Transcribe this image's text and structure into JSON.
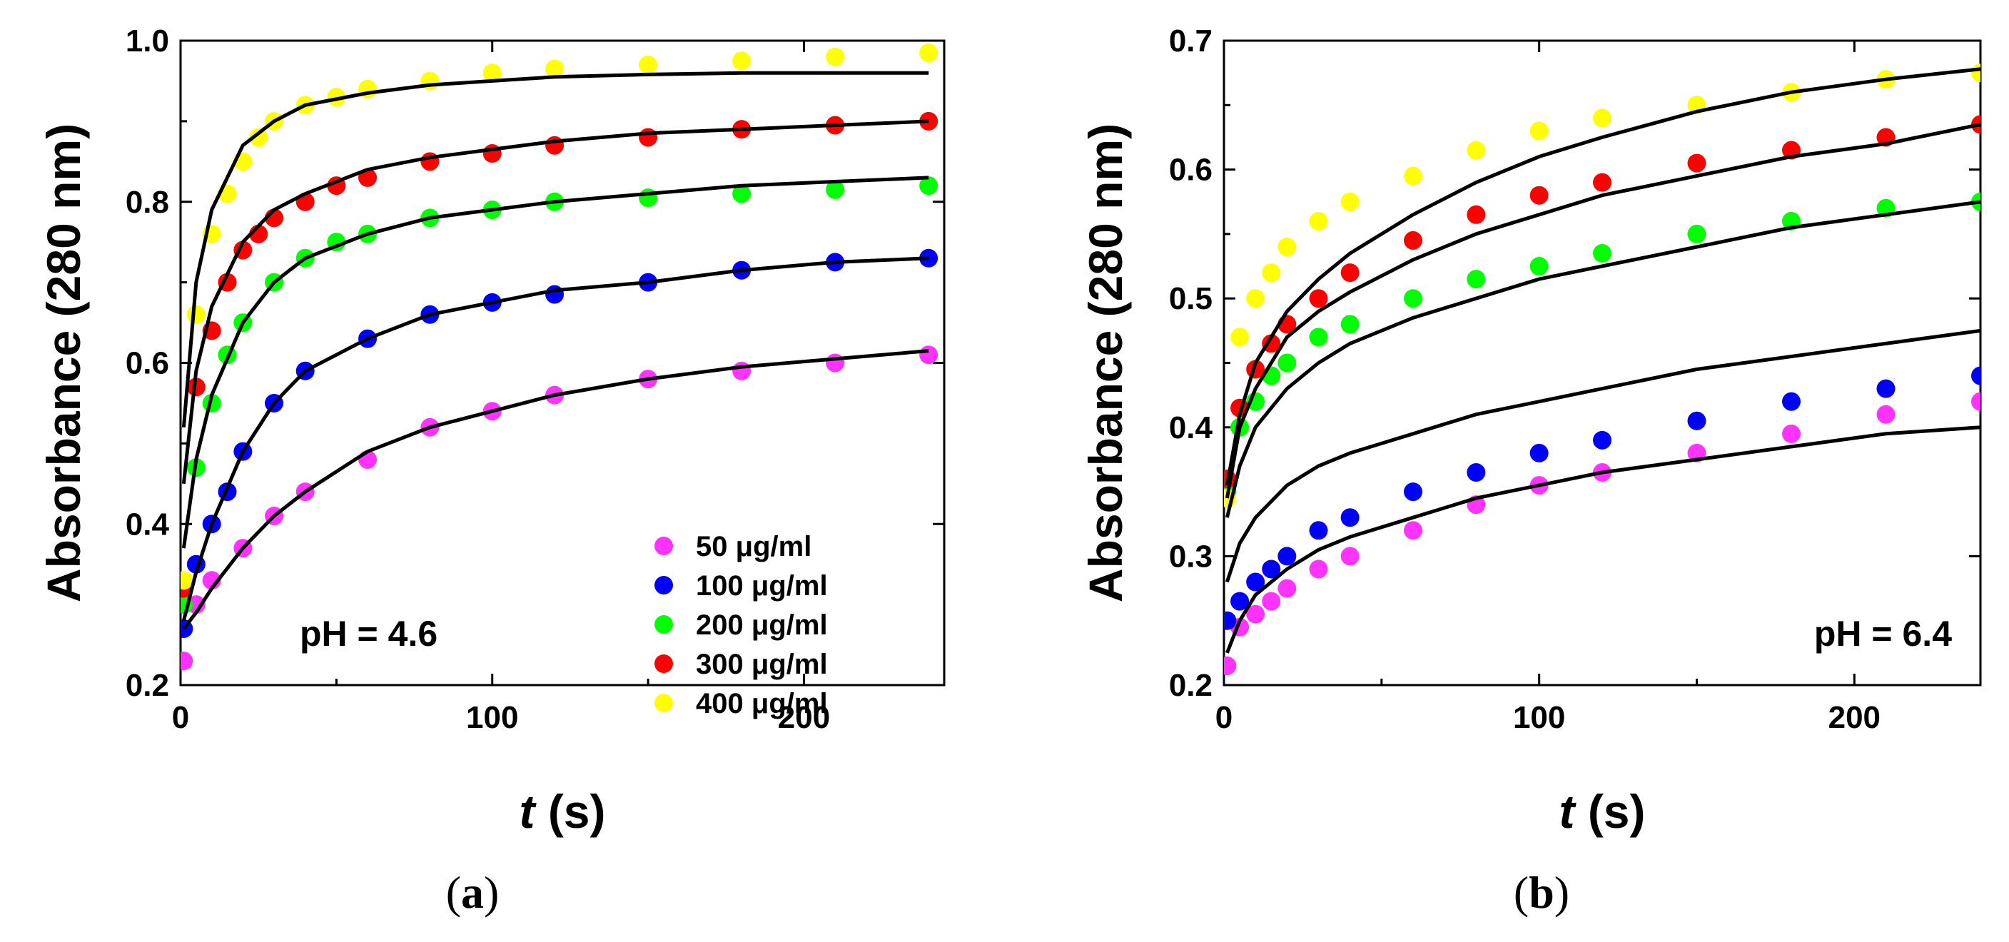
{
  "chart_data": [
    {
      "type": "scatter",
      "panel_label": "a",
      "annotation": "pH = 4.6",
      "xlabel_var": "t",
      "xlabel_unit": " (s)",
      "ylabel": "Absorbance (280 nm)",
      "xlim": [
        0,
        245
      ],
      "ylim": [
        0.2,
        1.0
      ],
      "xticks": [
        0,
        100,
        200
      ],
      "xtick_labels": [
        "0",
        "100",
        "200"
      ],
      "yticks": [
        0.2,
        0.4,
        0.6,
        0.8,
        1.0
      ],
      "ytick_labels": [
        "0.2",
        "0.4",
        "0.6",
        "0.8",
        "1.0"
      ],
      "legend_position": "bottom-right",
      "series": [
        {
          "name": "50 μg/ml",
          "color": "#ff33ff",
          "x": [
            1,
            5,
            10,
            20,
            30,
            40,
            60,
            80,
            100,
            120,
            150,
            180,
            210,
            240
          ],
          "y": [
            0.23,
            0.3,
            0.33,
            0.37,
            0.41,
            0.44,
            0.48,
            0.52,
            0.54,
            0.56,
            0.58,
            0.59,
            0.6,
            0.61
          ]
        },
        {
          "name": "100 μg/ml",
          "color": "#0000ff",
          "x": [
            1,
            5,
            10,
            15,
            20,
            30,
            40,
            60,
            80,
            100,
            120,
            150,
            180,
            210,
            240
          ],
          "y": [
            0.27,
            0.35,
            0.4,
            0.44,
            0.49,
            0.55,
            0.59,
            0.63,
            0.66,
            0.675,
            0.685,
            0.7,
            0.715,
            0.725,
            0.73
          ]
        },
        {
          "name": "200 μg/ml",
          "color": "#00ff00",
          "x": [
            1,
            5,
            10,
            15,
            20,
            30,
            40,
            50,
            60,
            80,
            100,
            120,
            150,
            180,
            210,
            240
          ],
          "y": [
            0.3,
            0.47,
            0.55,
            0.61,
            0.65,
            0.7,
            0.73,
            0.75,
            0.76,
            0.78,
            0.79,
            0.8,
            0.805,
            0.81,
            0.815,
            0.82
          ]
        },
        {
          "name": "300 μg/ml",
          "color": "#ff0000",
          "x": [
            1,
            5,
            10,
            15,
            20,
            25,
            30,
            40,
            50,
            60,
            80,
            100,
            120,
            150,
            180,
            210,
            240
          ],
          "y": [
            0.32,
            0.57,
            0.64,
            0.7,
            0.74,
            0.76,
            0.78,
            0.8,
            0.82,
            0.83,
            0.85,
            0.86,
            0.87,
            0.88,
            0.89,
            0.895,
            0.9
          ]
        },
        {
          "name": "400 μg/ml",
          "color": "#ffff00",
          "x": [
            1,
            5,
            10,
            15,
            20,
            25,
            30,
            40,
            50,
            60,
            80,
            100,
            120,
            150,
            180,
            210,
            240
          ],
          "y": [
            0.33,
            0.66,
            0.76,
            0.81,
            0.85,
            0.88,
            0.9,
            0.92,
            0.93,
            0.94,
            0.95,
            0.96,
            0.965,
            0.97,
            0.975,
            0.98,
            0.985
          ]
        }
      ],
      "fits": [
        {
          "x": [
            1,
            5,
            10,
            20,
            30,
            40,
            60,
            80,
            100,
            120,
            150,
            180,
            210,
            240
          ],
          "y": [
            0.27,
            0.29,
            0.32,
            0.37,
            0.41,
            0.44,
            0.49,
            0.52,
            0.54,
            0.56,
            0.58,
            0.595,
            0.605,
            0.615
          ]
        },
        {
          "x": [
            1,
            5,
            10,
            20,
            30,
            40,
            60,
            80,
            100,
            120,
            150,
            180,
            210,
            240
          ],
          "y": [
            0.28,
            0.34,
            0.4,
            0.49,
            0.55,
            0.59,
            0.63,
            0.66,
            0.675,
            0.69,
            0.7,
            0.715,
            0.725,
            0.73
          ]
        },
        {
          "x": [
            1,
            5,
            10,
            20,
            30,
            40,
            60,
            80,
            100,
            120,
            150,
            180,
            210,
            240
          ],
          "y": [
            0.37,
            0.48,
            0.56,
            0.65,
            0.7,
            0.73,
            0.76,
            0.78,
            0.79,
            0.8,
            0.81,
            0.82,
            0.825,
            0.83
          ]
        },
        {
          "x": [
            1,
            5,
            10,
            20,
            30,
            40,
            60,
            80,
            100,
            120,
            150,
            180,
            210,
            240
          ],
          "y": [
            0.45,
            0.59,
            0.67,
            0.75,
            0.79,
            0.81,
            0.84,
            0.855,
            0.865,
            0.875,
            0.885,
            0.89,
            0.895,
            0.9
          ]
        },
        {
          "x": [
            1,
            5,
            10,
            20,
            30,
            40,
            60,
            80,
            100,
            120,
            150,
            180,
            210,
            240
          ],
          "y": [
            0.52,
            0.7,
            0.79,
            0.87,
            0.9,
            0.92,
            0.935,
            0.945,
            0.95,
            0.955,
            0.958,
            0.96,
            0.96,
            0.96
          ]
        }
      ]
    },
    {
      "type": "scatter",
      "panel_label": "b",
      "annotation": "pH = 6.4",
      "xlabel_var": "t",
      "xlabel_unit": " (s)",
      "ylabel": "Absorbance (280 nm)",
      "xlim": [
        0,
        240
      ],
      "ylim": [
        0.2,
        0.7
      ],
      "xticks": [
        0,
        100,
        200
      ],
      "xtick_labels": [
        "0",
        "100",
        "200"
      ],
      "yticks": [
        0.2,
        0.3,
        0.4,
        0.5,
        0.6,
        0.7
      ],
      "ytick_labels": [
        "0.2",
        "0.3",
        "0.4",
        "0.5",
        "0.6",
        "0.7"
      ],
      "series": [
        {
          "name": "50 μg/ml",
          "color": "#ff33ff",
          "x": [
            1,
            5,
            10,
            15,
            20,
            30,
            40,
            60,
            80,
            100,
            120,
            150,
            180,
            210,
            240
          ],
          "y": [
            0.215,
            0.245,
            0.255,
            0.265,
            0.275,
            0.29,
            0.3,
            0.32,
            0.34,
            0.355,
            0.365,
            0.38,
            0.395,
            0.41,
            0.42
          ]
        },
        {
          "name": "100 μg/ml",
          "color": "#0000ff",
          "x": [
            1,
            5,
            10,
            15,
            20,
            30,
            40,
            60,
            80,
            100,
            120,
            150,
            180,
            210,
            240
          ],
          "y": [
            0.25,
            0.265,
            0.28,
            0.29,
            0.3,
            0.32,
            0.33,
            0.35,
            0.365,
            0.38,
            0.39,
            0.405,
            0.42,
            0.43,
            0.44
          ]
        },
        {
          "name": "200 μg/ml",
          "color": "#00ff00",
          "x": [
            1,
            5,
            10,
            15,
            20,
            30,
            40,
            60,
            80,
            100,
            120,
            150,
            180,
            210,
            240
          ],
          "y": [
            0.35,
            0.4,
            0.42,
            0.44,
            0.45,
            0.47,
            0.48,
            0.5,
            0.515,
            0.525,
            0.535,
            0.55,
            0.56,
            0.57,
            0.575
          ]
        },
        {
          "name": "300 μg/ml",
          "color": "#ff0000",
          "x": [
            1,
            5,
            10,
            15,
            20,
            30,
            40,
            60,
            80,
            100,
            120,
            150,
            180,
            210,
            240
          ],
          "y": [
            0.36,
            0.415,
            0.445,
            0.465,
            0.48,
            0.5,
            0.52,
            0.545,
            0.565,
            0.58,
            0.59,
            0.605,
            0.615,
            0.625,
            0.635
          ]
        },
        {
          "name": "400 μg/ml",
          "color": "#ffff00",
          "x": [
            1,
            5,
            10,
            15,
            20,
            30,
            40,
            60,
            80,
            100,
            120,
            150,
            180,
            210,
            240
          ],
          "y": [
            0.345,
            0.47,
            0.5,
            0.52,
            0.54,
            0.56,
            0.575,
            0.595,
            0.615,
            0.63,
            0.64,
            0.65,
            0.66,
            0.67,
            0.675
          ]
        }
      ],
      "fits": [
        {
          "x": [
            1,
            5,
            10,
            20,
            30,
            40,
            60,
            80,
            100,
            120,
            150,
            180,
            210,
            240
          ],
          "y": [
            0.225,
            0.25,
            0.27,
            0.29,
            0.305,
            0.315,
            0.33,
            0.345,
            0.355,
            0.365,
            0.375,
            0.385,
            0.395,
            0.4
          ]
        },
        {
          "x": [
            1,
            5,
            10,
            20,
            30,
            40,
            60,
            80,
            100,
            120,
            150,
            180,
            210,
            240
          ],
          "y": [
            0.28,
            0.31,
            0.33,
            0.355,
            0.37,
            0.38,
            0.395,
            0.41,
            0.42,
            0.43,
            0.445,
            0.455,
            0.465,
            0.475
          ]
        },
        {
          "x": [
            1,
            5,
            10,
            20,
            30,
            40,
            60,
            80,
            100,
            120,
            150,
            180,
            210,
            240
          ],
          "y": [
            0.33,
            0.37,
            0.4,
            0.43,
            0.45,
            0.465,
            0.485,
            0.5,
            0.515,
            0.525,
            0.54,
            0.555,
            0.565,
            0.575
          ]
        },
        {
          "x": [
            1,
            5,
            10,
            20,
            30,
            40,
            60,
            80,
            100,
            120,
            150,
            180,
            210,
            240
          ],
          "y": [
            0.345,
            0.4,
            0.43,
            0.47,
            0.49,
            0.505,
            0.53,
            0.55,
            0.565,
            0.58,
            0.595,
            0.61,
            0.62,
            0.635
          ]
        },
        {
          "x": [
            1,
            5,
            10,
            20,
            30,
            40,
            60,
            80,
            100,
            120,
            150,
            180,
            210,
            240
          ],
          "y": [
            0.355,
            0.41,
            0.45,
            0.49,
            0.515,
            0.535,
            0.565,
            0.59,
            0.61,
            0.625,
            0.645,
            0.66,
            0.67,
            0.678
          ]
        }
      ]
    }
  ]
}
